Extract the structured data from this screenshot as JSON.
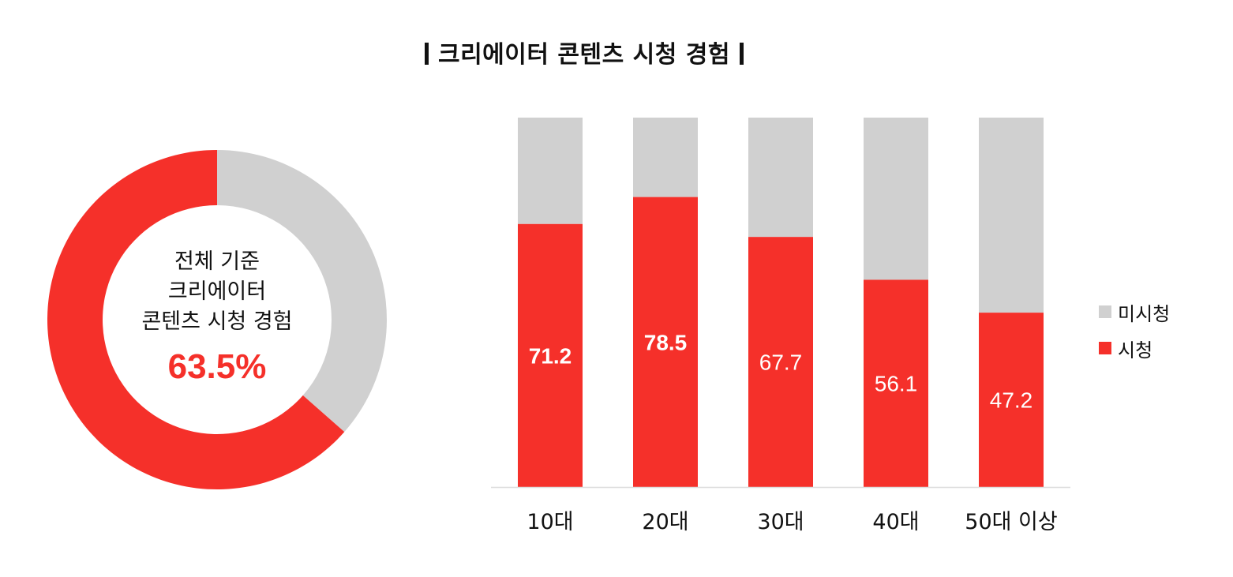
{
  "title": "크리에이터 콘텐츠 시청 경험",
  "colors": {
    "watched": "#f5302a",
    "not_watched": "#d0d0d0",
    "axis": "#dddddd"
  },
  "donut": {
    "label_line1": "전체 기준",
    "label_line2": "크리에이터",
    "label_line3": "콘텐츠 시청 경험",
    "value_text": "63.5%"
  },
  "legend": [
    {
      "label": "미시청",
      "color": "#d0d0d0"
    },
    {
      "label": "시청",
      "color": "#f5302a"
    }
  ],
  "chart_data": [
    {
      "type": "pie",
      "variant": "donut",
      "categories": [
        "시청",
        "미시청"
      ],
      "values": [
        63.5,
        36.5
      ],
      "center_text": "63.5%"
    },
    {
      "type": "bar",
      "stacked": true,
      "categories": [
        "10대",
        "20대",
        "30대",
        "40대",
        "50대 이상"
      ],
      "series": [
        {
          "name": "시청",
          "values": [
            71.2,
            78.5,
            67.7,
            56.1,
            47.2
          ],
          "labels": [
            "71.2",
            "78.5",
            "67.7",
            "56.1",
            "47.2"
          ]
        },
        {
          "name": "미시청",
          "values": [
            28.8,
            21.5,
            32.3,
            43.9,
            52.8
          ]
        }
      ],
      "ylim": [
        0,
        100
      ],
      "legend_position": "right"
    }
  ]
}
